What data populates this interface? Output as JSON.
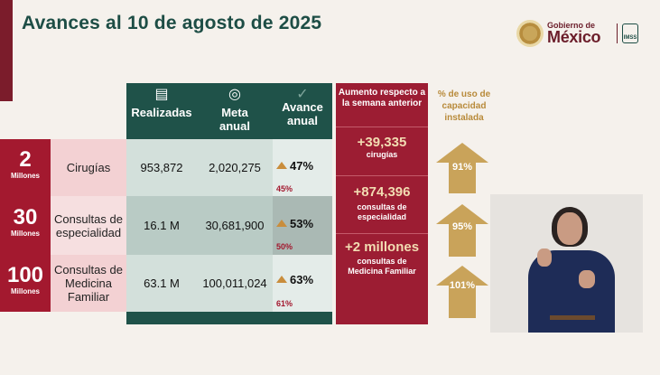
{
  "title": "Avances al 10 de agosto de 2025",
  "logo": {
    "gobierno": "Gobierno de",
    "mexico": "México",
    "imss": "IMSS"
  },
  "table": {
    "headers": {
      "realizadas": "Realizadas",
      "meta": [
        "Meta",
        "anual"
      ],
      "avance": [
        "Avance",
        "anual"
      ]
    },
    "rows": [
      {
        "count": "2",
        "unit": "Millones",
        "name": "Cirugías",
        "realizadas": "953,872",
        "meta": "2,020,275",
        "avance": "47%",
        "prev": "45%"
      },
      {
        "count": "30",
        "unit": "Millones",
        "name": "Consultas de especialidad",
        "realizadas": "16.1 M",
        "meta": "30,681,900",
        "avance": "53%",
        "prev": "50%"
      },
      {
        "count": "100",
        "unit": "Millones",
        "name": "Consultas de Medicina Familiar",
        "realizadas": "63.1 M",
        "meta": "100,011,024",
        "avance": "63%",
        "prev": "61%"
      }
    ]
  },
  "aumento": {
    "header": "Aumento respecto a la semana anterior",
    "items": [
      {
        "value": "+39,335",
        "label": "cirugías"
      },
      {
        "value": "+874,396",
        "label": "consultas de especialidad"
      },
      {
        "value": "+2 millones",
        "label": "consultas de Medicina Familiar"
      }
    ]
  },
  "capacidad": {
    "header": "% de uso de capacidad instalada",
    "items": [
      "91%",
      "95%",
      "101%"
    ]
  },
  "colors": {
    "green": "#1f5249",
    "maroon": "#a3192f",
    "gold": "#c9a35a"
  }
}
